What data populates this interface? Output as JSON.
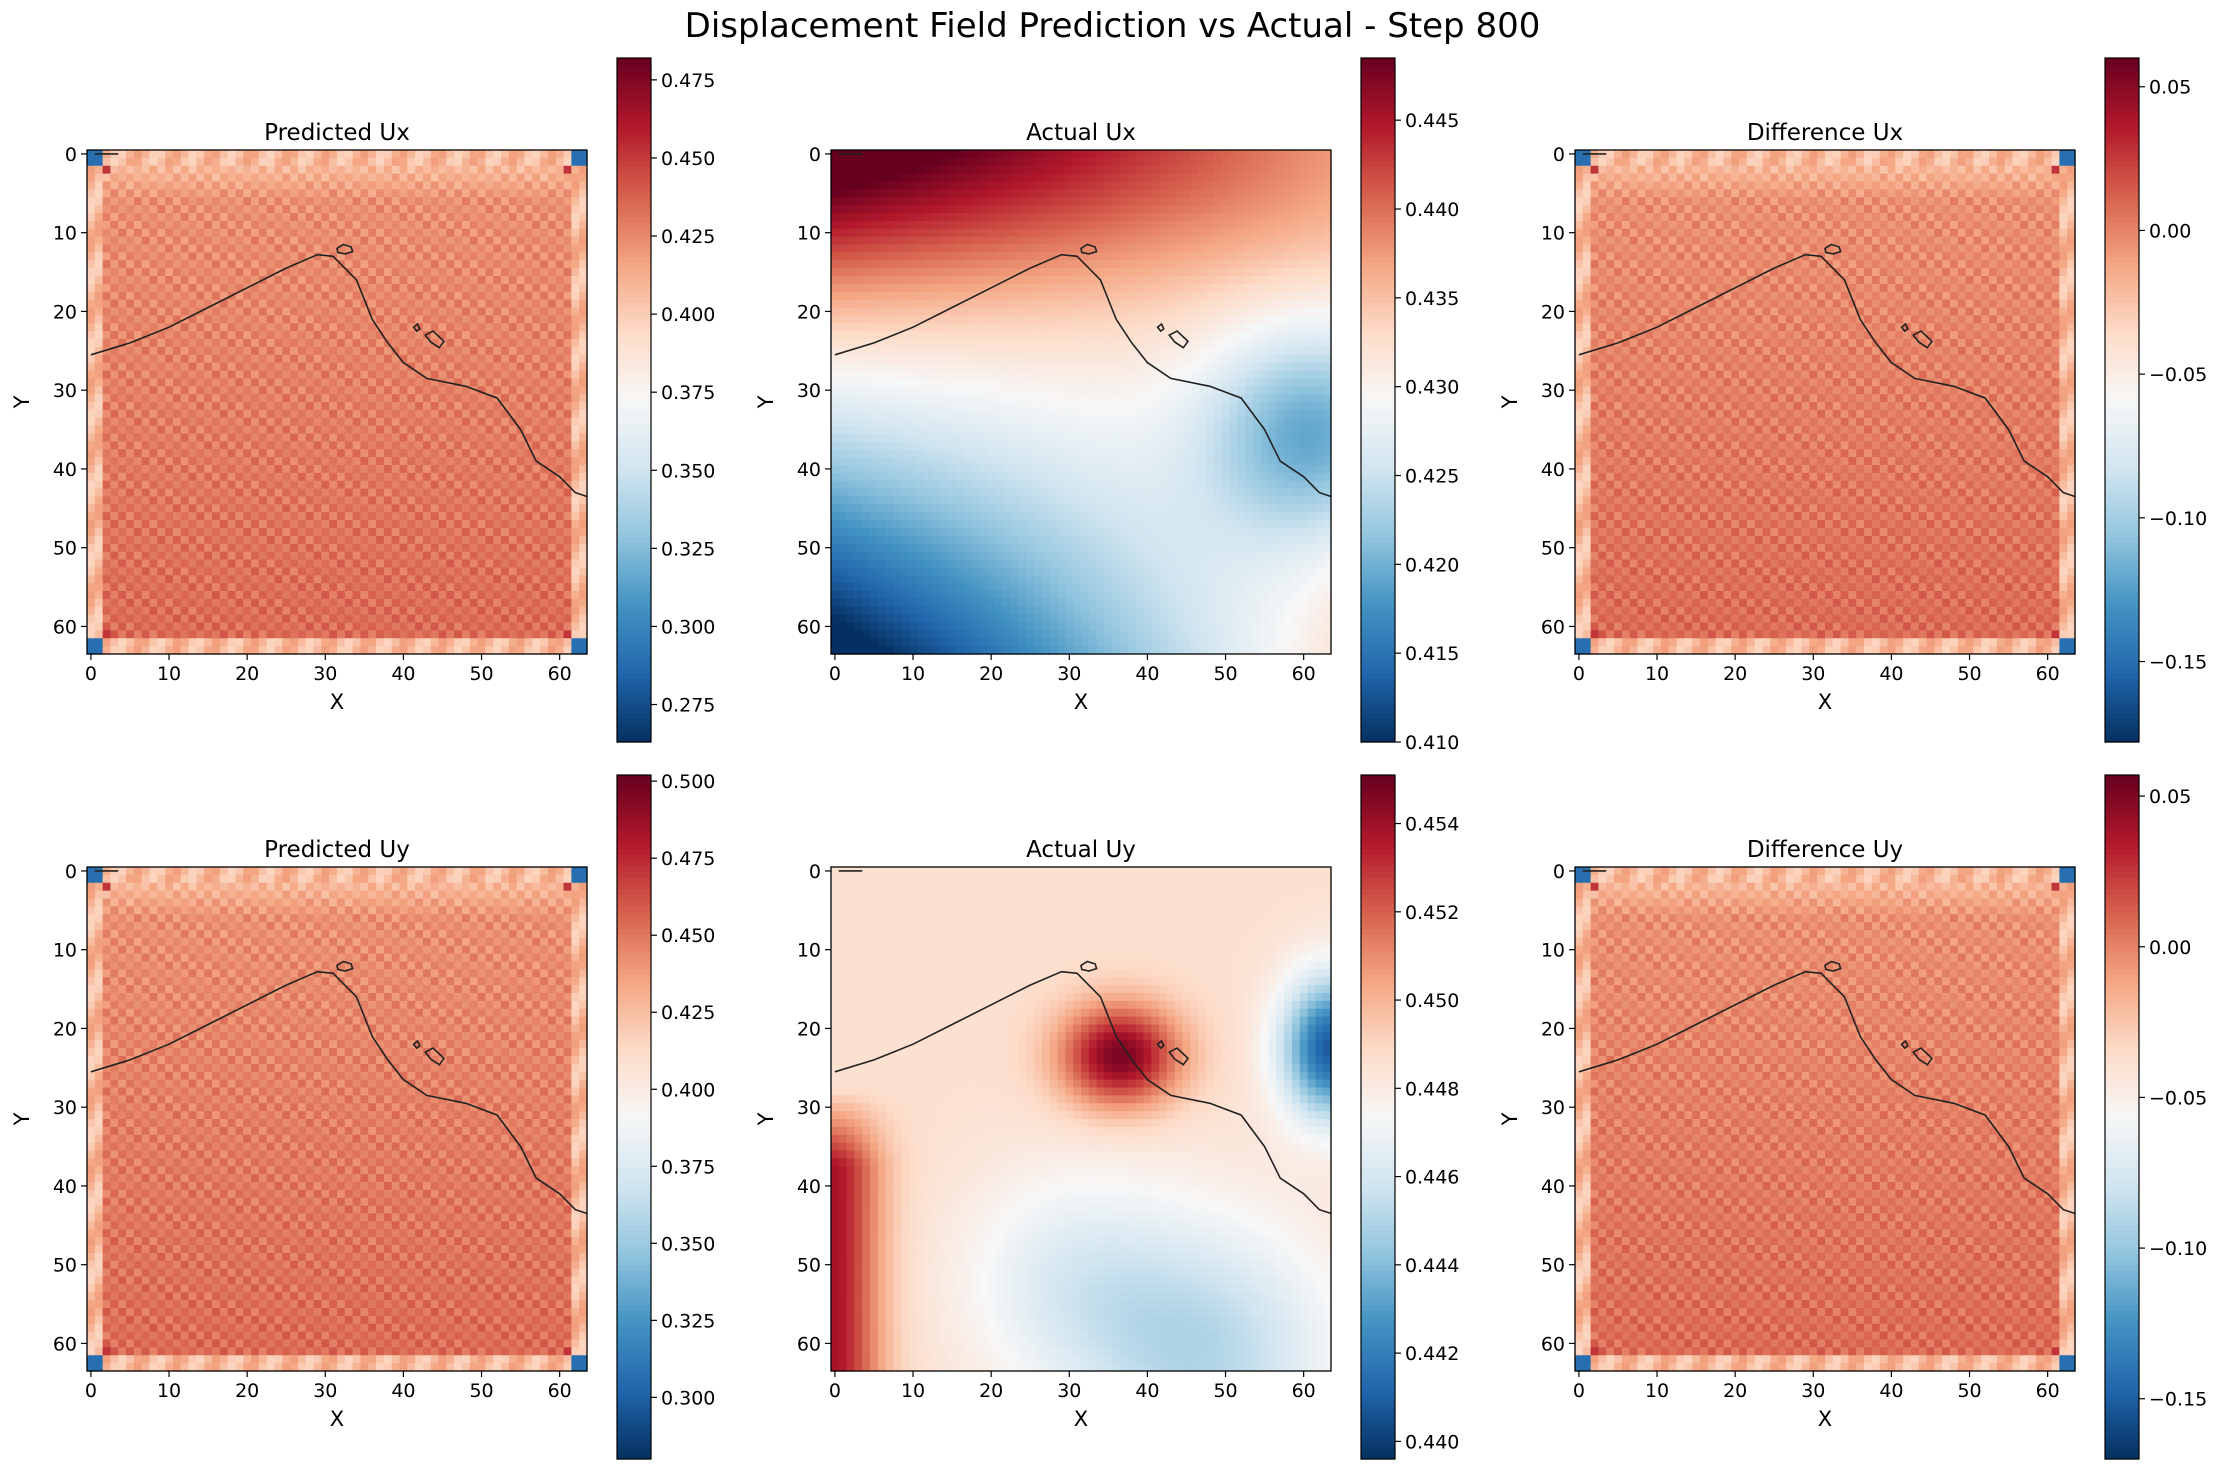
{
  "figure": {
    "title": "Displacement Field Prediction vs Actual - Step 800"
  },
  "colormap": {
    "name": "RdBu_r",
    "stops": [
      "#053061",
      "#2166ac",
      "#4393c3",
      "#92c5de",
      "#d1e5f0",
      "#f7f7f7",
      "#fddbc7",
      "#f4a582",
      "#d6604d",
      "#b2182b",
      "#67001f"
    ]
  },
  "contour_color": "#222222",
  "chart_data": [
    {
      "type": "heatmap",
      "panel": "predicted-ux",
      "title": "Predicted Ux",
      "xlabel": "X",
      "ylabel": "Y",
      "grid_size": [
        64,
        64
      ],
      "field": "predicted",
      "xticks": [
        0,
        10,
        20,
        30,
        40,
        50,
        60
      ],
      "yticks": [
        0,
        10,
        20,
        30,
        40,
        50,
        60
      ],
      "colorbar": {
        "min": 0.263,
        "max": 0.482,
        "ticks": [
          0.275,
          0.3,
          0.325,
          0.35,
          0.375,
          0.4,
          0.425,
          0.45,
          0.475
        ],
        "labels": [
          "0.275",
          "0.300",
          "0.325",
          "0.350",
          "0.375",
          "0.400",
          "0.425",
          "0.450",
          "0.475"
        ]
      }
    },
    {
      "type": "heatmap",
      "panel": "actual-ux",
      "title": "Actual Ux",
      "xlabel": "X",
      "ylabel": "Y",
      "grid_size": [
        64,
        64
      ],
      "field": "actual_ux",
      "xticks": [
        0,
        10,
        20,
        30,
        40,
        50,
        60
      ],
      "yticks": [
        0,
        10,
        20,
        30,
        40,
        50,
        60
      ],
      "colorbar": {
        "min": 0.41,
        "max": 0.4485,
        "ticks": [
          0.41,
          0.415,
          0.42,
          0.425,
          0.43,
          0.435,
          0.44,
          0.445
        ],
        "labels": [
          "0.410",
          "0.415",
          "0.420",
          "0.425",
          "0.430",
          "0.435",
          "0.440",
          "0.445"
        ]
      }
    },
    {
      "type": "heatmap",
      "panel": "difference-ux",
      "title": "Difference Ux",
      "xlabel": "X",
      "ylabel": "Y",
      "grid_size": [
        64,
        64
      ],
      "field": "difference",
      "xticks": [
        0,
        10,
        20,
        30,
        40,
        50,
        60
      ],
      "yticks": [
        0,
        10,
        20,
        30,
        40,
        50,
        60
      ],
      "colorbar": {
        "min": -0.178,
        "max": 0.06,
        "ticks": [
          -0.15,
          -0.1,
          -0.05,
          0.0,
          0.05
        ],
        "labels": [
          "−0.15",
          "−0.10",
          "−0.05",
          "0.00",
          "0.05"
        ]
      }
    },
    {
      "type": "heatmap",
      "panel": "predicted-uy",
      "title": "Predicted Uy",
      "xlabel": "X",
      "ylabel": "Y",
      "grid_size": [
        64,
        64
      ],
      "field": "predicted",
      "xticks": [
        0,
        10,
        20,
        30,
        40,
        50,
        60
      ],
      "yticks": [
        0,
        10,
        20,
        30,
        40,
        50,
        60
      ],
      "colorbar": {
        "min": 0.28,
        "max": 0.502,
        "ticks": [
          0.3,
          0.325,
          0.35,
          0.375,
          0.4,
          0.425,
          0.45,
          0.475,
          0.5
        ],
        "labels": [
          "0.300",
          "0.325",
          "0.350",
          "0.375",
          "0.400",
          "0.425",
          "0.450",
          "0.475",
          "0.500"
        ]
      }
    },
    {
      "type": "heatmap",
      "panel": "actual-uy",
      "title": "Actual Uy",
      "xlabel": "X",
      "ylabel": "Y",
      "grid_size": [
        64,
        64
      ],
      "field": "actual_uy",
      "xticks": [
        0,
        10,
        20,
        30,
        40,
        50,
        60
      ],
      "yticks": [
        0,
        10,
        20,
        30,
        40,
        50,
        60
      ],
      "colorbar": {
        "min": 0.4396,
        "max": 0.4551,
        "ticks": [
          0.44,
          0.442,
          0.444,
          0.446,
          0.448,
          0.45,
          0.452,
          0.454
        ],
        "labels": [
          "0.440",
          "0.442",
          "0.444",
          "0.446",
          "0.448",
          "0.450",
          "0.452",
          "0.454"
        ]
      }
    },
    {
      "type": "heatmap",
      "panel": "difference-uy",
      "title": "Difference Uy",
      "xlabel": "X",
      "ylabel": "Y",
      "grid_size": [
        64,
        64
      ],
      "field": "difference",
      "xticks": [
        0,
        10,
        20,
        30,
        40,
        50,
        60
      ],
      "yticks": [
        0,
        10,
        20,
        30,
        40,
        50,
        60
      ],
      "colorbar": {
        "min": -0.17,
        "max": 0.057,
        "ticks": [
          -0.15,
          -0.1,
          -0.05,
          0.0,
          0.05
        ],
        "labels": [
          "−0.15",
          "−0.10",
          "−0.05",
          "0.00",
          "0.05"
        ]
      }
    }
  ],
  "contour_boundary": {
    "main_line": [
      [
        0,
        25.5
      ],
      [
        5,
        24
      ],
      [
        10,
        22
      ],
      [
        15,
        19.5
      ],
      [
        20,
        17
      ],
      [
        25,
        14.5
      ],
      [
        29,
        12.8
      ],
      [
        31,
        13
      ],
      [
        34,
        16
      ],
      [
        36,
        21
      ],
      [
        38,
        24
      ],
      [
        40,
        26.5
      ],
      [
        43,
        28.5
      ],
      [
        48,
        29.5
      ],
      [
        52,
        31
      ],
      [
        55,
        35
      ],
      [
        57,
        39
      ],
      [
        60,
        41
      ],
      [
        62,
        43
      ],
      [
        63.5,
        43.5
      ]
    ],
    "small_loops": [
      [
        [
          31.5,
          12
        ],
        [
          32.3,
          11.5
        ],
        [
          33.3,
          11.8
        ],
        [
          33.5,
          12.4
        ],
        [
          32.5,
          12.7
        ],
        [
          31.6,
          12.5
        ]
      ],
      [
        [
          42.8,
          23
        ],
        [
          43.8,
          22.5
        ],
        [
          45.2,
          23.8
        ],
        [
          44.6,
          24.6
        ],
        [
          43.5,
          23.9
        ]
      ],
      [
        [
          41.3,
          22
        ],
        [
          41.8,
          21.6
        ],
        [
          42.1,
          22.2
        ],
        [
          41.7,
          22.5
        ]
      ]
    ],
    "corner_stub": [
      [
        0.5,
        0
      ],
      [
        3.5,
        0
      ]
    ]
  }
}
